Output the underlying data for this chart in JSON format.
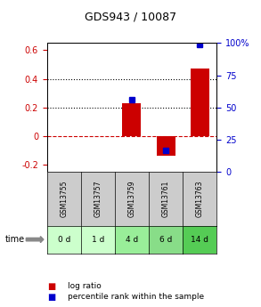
{
  "title": "GDS943 / 10087",
  "samples": [
    "GSM13755",
    "GSM13757",
    "GSM13759",
    "GSM13761",
    "GSM13763"
  ],
  "time_labels": [
    "0 d",
    "1 d",
    "4 d",
    "6 d",
    "14 d"
  ],
  "log_ratios": [
    0.0,
    0.0,
    0.23,
    -0.14,
    0.47
  ],
  "percentile_ranks": [
    null,
    null,
    56.0,
    17.0,
    99.0
  ],
  "ylim_left": [
    -0.25,
    0.65
  ],
  "ylim_right": [
    0,
    100
  ],
  "yticks_left": [
    -0.2,
    0.0,
    0.2,
    0.4,
    0.6
  ],
  "yticks_right": [
    0,
    25,
    50,
    75,
    100
  ],
  "bar_color": "#cc0000",
  "dot_color": "#0000cc",
  "zero_line_color": "#cc0000",
  "grid_color": "#000000",
  "bg_color": "#ffffff",
  "sample_box_color": "#cccccc",
  "time_box_colors": [
    "#ccffcc",
    "#ccffcc",
    "#99ee99",
    "#88dd88",
    "#55cc55"
  ],
  "legend_bar_color": "#cc0000",
  "legend_dot_color": "#0000cc",
  "bar_width": 0.55
}
